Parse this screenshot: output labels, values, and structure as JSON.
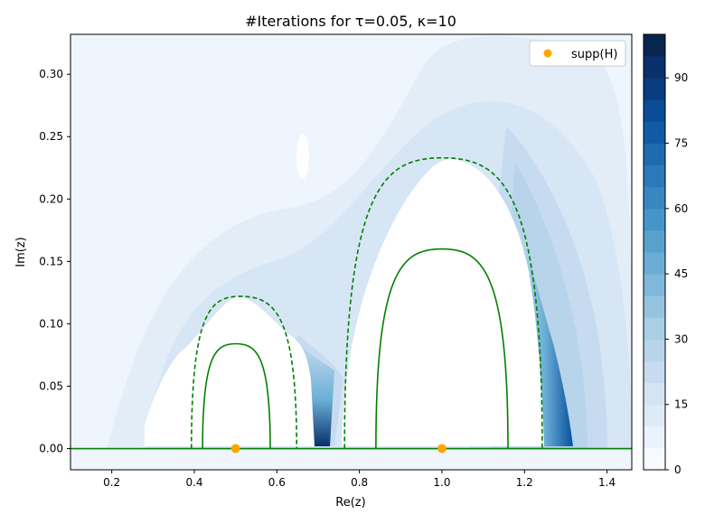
{
  "chart_data": {
    "type": "heatmap",
    "title": "#Iterations for τ=0.05, κ=10",
    "xlabel": "Re(z)",
    "ylabel": "Im(z)",
    "xlim": [
      0.1,
      1.46
    ],
    "ylim": [
      -0.017,
      0.332
    ],
    "xticks": [
      0.2,
      0.4,
      0.6,
      0.8,
      1.0,
      1.2,
      1.4
    ],
    "xtick_labels": [
      "0.2",
      "0.4",
      "0.6",
      "0.8",
      "1.0",
      "1.2",
      "1.4"
    ],
    "yticks": [
      0.0,
      0.05,
      0.1,
      0.15,
      0.2,
      0.25,
      0.3
    ],
    "ytick_labels": [
      "0.00",
      "0.05",
      "0.10",
      "0.15",
      "0.20",
      "0.25",
      "0.30"
    ],
    "grid": false,
    "legend": {
      "position": "top-right",
      "entries": [
        {
          "label": "supp(H)",
          "color": "#ffa500",
          "marker": "circle"
        }
      ]
    },
    "support_points": [
      {
        "x": 0.5,
        "y": 0.0
      },
      {
        "x": 1.0,
        "y": 0.0
      }
    ],
    "solid_contours": [
      {
        "x_left": 0.42,
        "x_right": 0.584,
        "peak_x": 0.5,
        "peak_y": 0.084
      },
      {
        "x_left": 0.84,
        "x_right": 1.16,
        "peak_x": 1.0,
        "peak_y": 0.16
      }
    ],
    "dashed_contours": [
      {
        "x_left": 0.393,
        "x_right": 0.648,
        "peak_x": 0.51,
        "peak_y": 0.122
      },
      {
        "x_left": 0.764,
        "x_right": 1.243,
        "peak_x": 1.0,
        "peak_y": 0.233
      }
    ],
    "contour_color": "#008000",
    "colorbar": {
      "min": 0,
      "max": 100,
      "levels": 20,
      "colormap": "Blues",
      "ticks": [
        0,
        15,
        30,
        45,
        60,
        75,
        90
      ],
      "tick_labels": [
        "0",
        "15",
        "30",
        "45",
        "60",
        "75",
        "90"
      ]
    }
  }
}
